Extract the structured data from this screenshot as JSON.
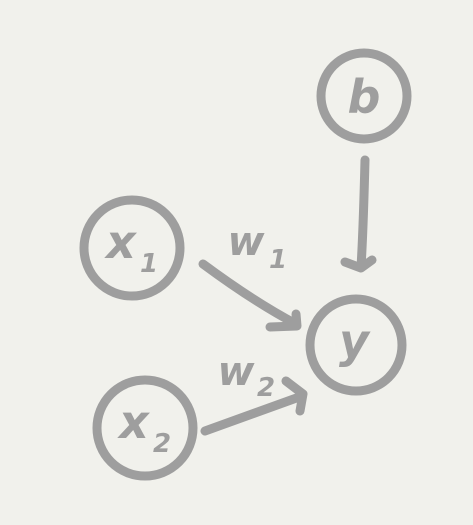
{
  "diagram": {
    "nodes": {
      "x1": {
        "label": "x",
        "sub": "1"
      },
      "x2": {
        "label": "x",
        "sub": "2"
      },
      "y": {
        "label": "y"
      },
      "b": {
        "label": "b"
      }
    },
    "edges": {
      "w1": {
        "label": "w",
        "sub": "1"
      },
      "w2": {
        "label": "w",
        "sub": "2"
      }
    },
    "stroke_color": "#9e9e9e",
    "background_color": "#f1f1ec"
  }
}
